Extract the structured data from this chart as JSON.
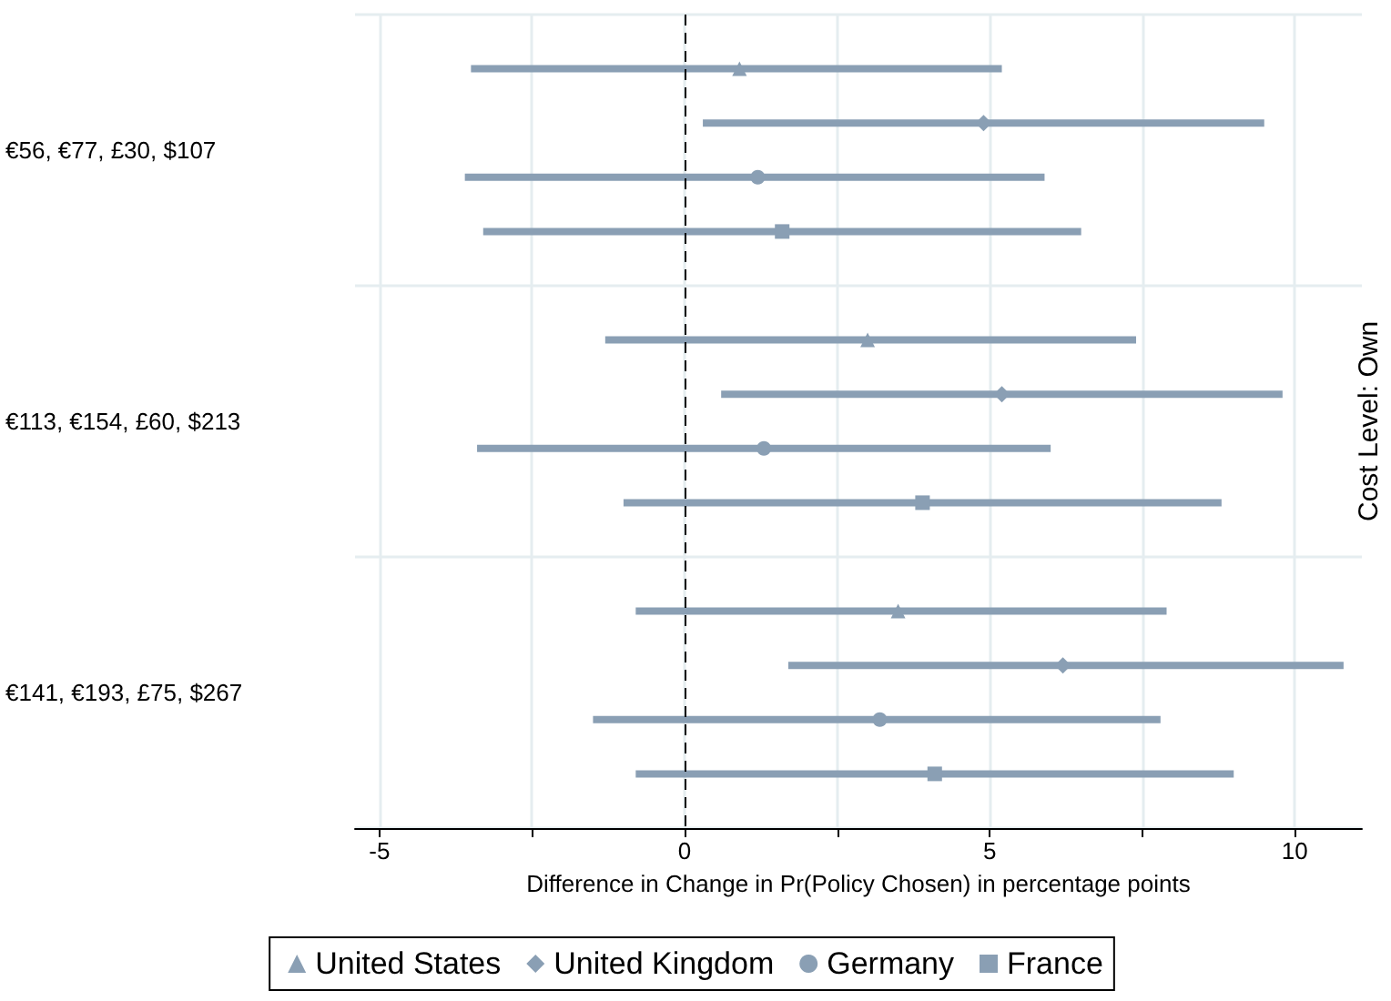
{
  "chart_data": {
    "type": "scatter",
    "orientation": "horizontal",
    "xlabel": "Difference in Change in Pr(Policy Chosen) in percentage points",
    "annotations": [
      "Cost Level: Own"
    ],
    "categories": [
      "€56, €77, £30, $107",
      "€113, €154, £60, $213",
      "€141, €193, £75, $267"
    ],
    "series": [
      {
        "name": "United States",
        "color": "#8a9fb4",
        "marker": "triangle",
        "values": [
          0.9,
          3.0,
          3.5
        ],
        "errors": [
          [
            -3.5,
            5.2
          ],
          [
            -1.3,
            7.4
          ],
          [
            -0.8,
            7.9
          ]
        ]
      },
      {
        "name": "United Kingdom",
        "color": "#8a9fb4",
        "marker": "diamond",
        "values": [
          4.9,
          5.2,
          6.2
        ],
        "errors": [
          [
            0.3,
            9.5
          ],
          [
            0.6,
            9.8
          ],
          [
            1.7,
            10.8
          ]
        ]
      },
      {
        "name": "Germany",
        "color": "#8a9fb4",
        "marker": "circle",
        "values": [
          1.2,
          1.3,
          3.2
        ],
        "errors": [
          [
            -3.6,
            5.9
          ],
          [
            -3.4,
            6.0
          ],
          [
            -1.5,
            7.8
          ]
        ]
      },
      {
        "name": "France",
        "color": "#8a9fb4",
        "marker": "square",
        "values": [
          1.6,
          3.9,
          4.1
        ],
        "errors": [
          [
            -3.3,
            6.5
          ],
          [
            -1.0,
            8.8
          ],
          [
            -0.8,
            9.0
          ]
        ]
      }
    ],
    "xlim": [
      -5.4,
      11.1
    ],
    "xticks": [
      -5,
      {
        "value": -2.5,
        "label": null
      },
      0,
      {
        "value": 2.5,
        "label": null
      },
      5,
      {
        "value": 7.5,
        "label": null
      },
      10
    ],
    "ref_lines": [
      {
        "axis": "x",
        "value": 0,
        "label": null,
        "color": "#000000",
        "line_style": "dashed"
      }
    ],
    "grid": true,
    "legend": "bottom"
  }
}
